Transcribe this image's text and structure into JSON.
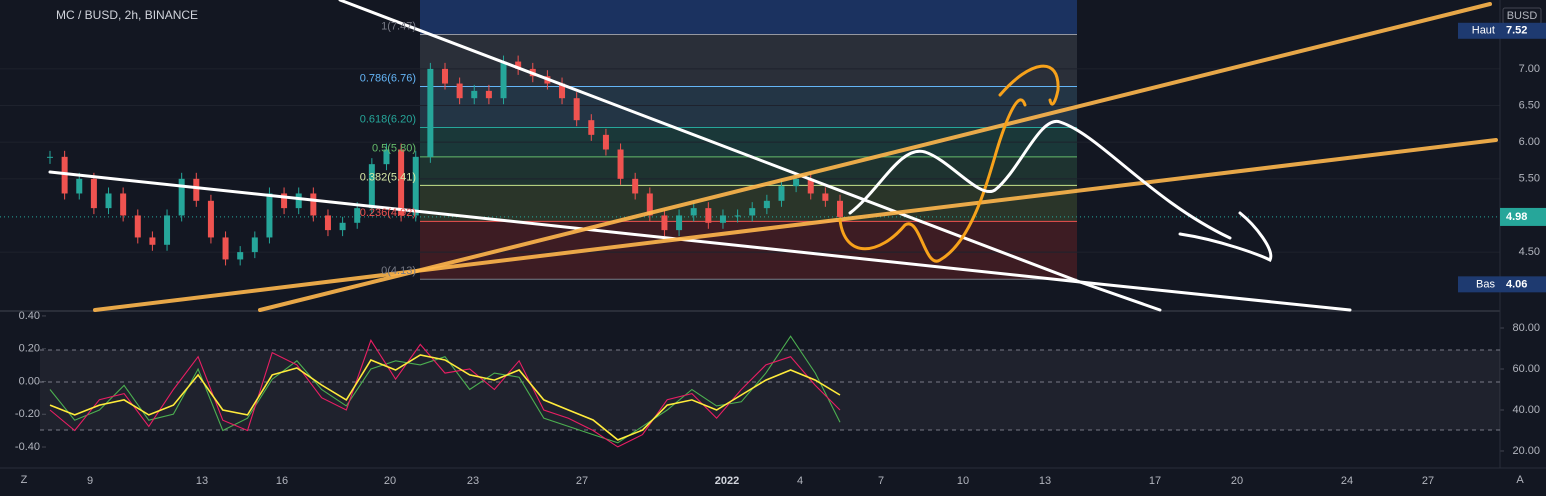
{
  "header": {
    "title": "MC / BUSD, 2h, BINANCE",
    "left_button": "Z",
    "right_button": "A"
  },
  "chart_data": [
    {
      "type": "candlestick",
      "currency": "BUSD",
      "values": [
        5.8,
        5.3,
        5.5,
        5.1,
        5.3,
        5.0,
        4.7,
        4.6,
        5.0,
        5.5,
        5.2,
        4.7,
        4.4,
        4.5,
        4.7,
        5.3,
        5.1,
        5.3,
        5.0,
        4.8,
        4.9,
        5.1,
        5.7,
        5.9,
        5.0,
        5.8,
        7.0,
        6.8,
        6.6,
        6.7,
        6.6,
        7.1,
        7.0,
        6.9,
        6.8,
        6.6,
        6.3,
        6.1,
        5.9,
        5.5,
        5.3,
        5.0,
        4.8,
        5.0,
        5.1,
        4.9,
        5.0,
        5.0,
        5.1,
        5.2,
        5.4,
        5.5,
        5.3,
        5.2,
        4.98
      ],
      "ylim": [
        3.71,
        7.94
      ],
      "yticks": [
        {
          "value": 7,
          "label": "7.00"
        },
        {
          "value": 6.5,
          "label": "6.50"
        },
        {
          "value": 6,
          "label": "6.00"
        },
        {
          "value": 5.5,
          "label": "5.50"
        },
        {
          "value": 4.5,
          "label": "4.50"
        }
      ],
      "fib_levels": [
        {
          "value": 7.47,
          "label": "1(7.47)"
        },
        {
          "value": 6.76,
          "label": "0.786(6.76)"
        },
        {
          "value": 6.2,
          "label": "0.618(6.20)"
        },
        {
          "value": 5.8,
          "label": "0.5(5.80)"
        },
        {
          "value": 5.41,
          "label": "0.382(5.41)"
        },
        {
          "value": 4.92,
          "label": "0.236(4.92)"
        },
        {
          "value": 4.13,
          "label": "0(4.13)"
        }
      ],
      "high": {
        "label": "Haut",
        "value": 7.52
      },
      "low": {
        "label": "Bas",
        "value": 4.06
      },
      "last": 4.98,
      "x_labels": [
        "9",
        "13",
        "16",
        "20",
        "23",
        "27",
        "2022",
        "4",
        "7",
        "10",
        "13",
        "17",
        "20",
        "24",
        "27"
      ]
    },
    {
      "type": "line",
      "ylim": [
        11.7,
        87.8
      ],
      "yticks": [
        {
          "value": 80,
          "label": "80.00"
        },
        {
          "value": 60,
          "label": "60.00"
        },
        {
          "value": 40,
          "label": "40.00"
        },
        {
          "value": 20,
          "label": "20.00"
        }
      ],
      "y2lim": [
        -0.528,
        0.424
      ],
      "y2ticks": [
        {
          "value": 0.4,
          "label": "0.40"
        },
        {
          "value": 0.2,
          "label": "0.20"
        },
        {
          "value": 0,
          "label": "0.00"
        },
        {
          "value": -0.2,
          "label": "-0.20"
        },
        {
          "value": -0.4,
          "label": "-0.40"
        }
      ],
      "series": [
        {
          "color": "#4caf50",
          "values": [
            50,
            35,
            40,
            52,
            35,
            38,
            60,
            30,
            36,
            55,
            64,
            50,
            42,
            60,
            64,
            62,
            66,
            50,
            58,
            56,
            36,
            32,
            28,
            24,
            32,
            40,
            50,
            42,
            44,
            58,
            76,
            58,
            34
          ]
        },
        {
          "color": "#e91e63",
          "values": [
            40,
            30,
            45,
            48,
            32,
            50,
            66,
            35,
            30,
            68,
            62,
            46,
            40,
            74,
            55,
            72,
            58,
            60,
            50,
            64,
            40,
            36,
            30,
            22,
            28,
            45,
            48,
            36,
            50,
            62,
            66,
            52,
            40
          ]
        },
        {
          "color": "#ffeb3b",
          "values": [
            42.4,
            37.6,
            42.4,
            44.9,
            37.6,
            42.4,
            57.1,
            40.0,
            37.6,
            57.1,
            60.5,
            52.2,
            44.9,
            64.4,
            59.5,
            66.8,
            64.4,
            57.1,
            54.6,
            59.5,
            44.9,
            40.0,
            35.1,
            25.4,
            30.2,
            42.4,
            44.9,
            40.0,
            47.3,
            54.6,
            59.5,
            54.6,
            47.3
          ]
        }
      ]
    }
  ]
}
